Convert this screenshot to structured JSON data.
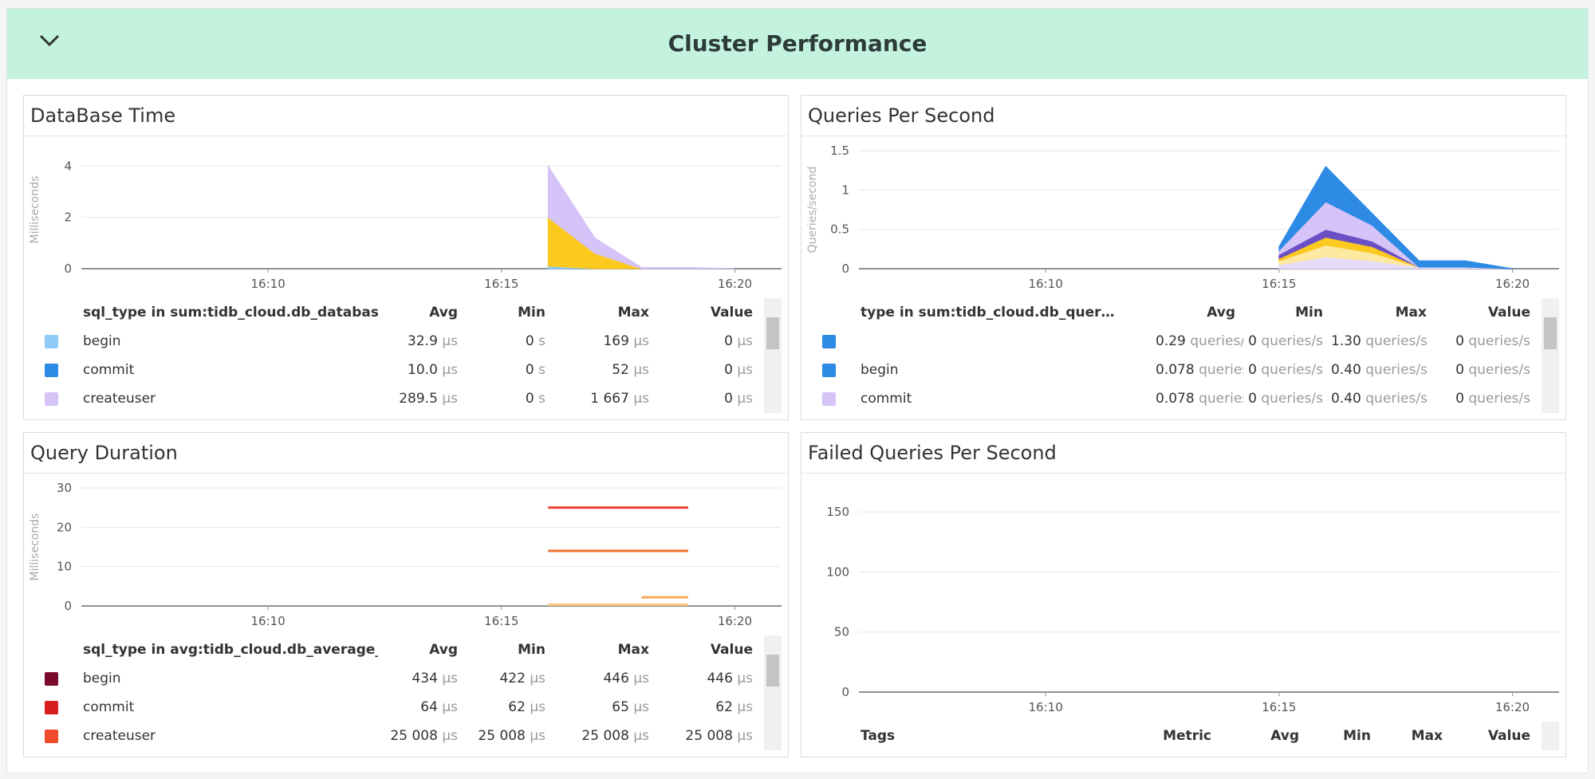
{
  "header": {
    "title": "Cluster Performance"
  },
  "panels": [
    {
      "title": "DataBase Time",
      "chart_data": {
        "type": "area",
        "y_label": "Milliseconds",
        "x": [
          "16:16",
          "16:17",
          "16:18",
          "16:19",
          "16:20"
        ],
        "xlim": [
          "16:06",
          "16:21"
        ],
        "xticks": [
          "16:10",
          "16:15",
          "16:20"
        ],
        "ylim": [
          0,
          4.6
        ],
        "yticks": [
          0,
          2,
          4
        ],
        "grid": true,
        "series": [
          {
            "color": "#8ecbf5",
            "values": [
              0.1,
              0,
              0,
              0,
              0
            ]
          },
          {
            "color": "#fcc91f",
            "values": [
              1.9,
              0.6,
              0,
              0,
              0
            ]
          },
          {
            "color": "#d6c3f7",
            "values": [
              2.0,
              0.6,
              0.05,
              0.05,
              0
            ]
          }
        ]
      },
      "legend": {
        "columns": [
          "sql_type in sum:tidb_cloud.db_database_time{host…",
          "Avg",
          "Min",
          "Max",
          "Value"
        ],
        "rows": [
          {
            "color": "#8ecbf5",
            "cells": [
              "begin",
              [
                "32.9",
                "µs"
              ],
              [
                "0",
                "s"
              ],
              [
                "169",
                "µs"
              ],
              [
                "0",
                "µs"
              ]
            ]
          },
          {
            "color": "#2d8be6",
            "cells": [
              "commit",
              [
                "10.0",
                "µs"
              ],
              [
                "0",
                "s"
              ],
              [
                "52",
                "µs"
              ],
              [
                "0",
                "µs"
              ]
            ]
          },
          {
            "color": "#d6c3f7",
            "cells": [
              "createuser",
              [
                "289.5",
                "µs"
              ],
              [
                "0",
                "s"
              ],
              [
                "1 667",
                "µs"
              ],
              [
                "0",
                "µs"
              ]
            ]
          }
        ]
      }
    },
    {
      "title": "Queries Per Second",
      "chart_data": {
        "type": "area",
        "y_label": "Queries/second",
        "x": [
          "16:15",
          "16:16",
          "16:17",
          "16:18",
          "16:19",
          "16:20"
        ],
        "xlim": [
          "16:06",
          "16:21"
        ],
        "xticks": [
          "16:10",
          "16:15",
          "16:20"
        ],
        "ylim": [
          0,
          1.5
        ],
        "yticks": [
          0,
          0.5,
          1,
          1.5
        ],
        "grid": true,
        "series": [
          {
            "color": "#e6dbf9",
            "values": [
              0.05,
              0.15,
              0.1,
              0.02,
              0.02,
              0
            ]
          },
          {
            "color": "#fde9a0",
            "values": [
              0.05,
              0.15,
              0.1,
              0,
              0,
              0
            ]
          },
          {
            "color": "#fcc91f",
            "values": [
              0.03,
              0.1,
              0.08,
              0,
              0,
              0
            ]
          },
          {
            "color": "#6b4fc4",
            "values": [
              0.05,
              0.1,
              0.07,
              0,
              0,
              0
            ]
          },
          {
            "color": "#d6c3f7",
            "values": [
              0.05,
              0.35,
              0.2,
              0,
              0,
              0
            ]
          },
          {
            "color": "#2d8be6",
            "values": [
              0.05,
              0.45,
              0.15,
              0.08,
              0.08,
              0
            ]
          }
        ]
      },
      "legend": {
        "columns": [
          "type in sum:tidb_cloud.db_quer…",
          "Avg",
          "Min",
          "Max",
          "Value"
        ],
        "rows": [
          {
            "color": "#2d8be6",
            "cells": [
              null,
              [
                "0.29",
                "queries/s"
              ],
              [
                "0",
                "queries/s"
              ],
              [
                "1.30",
                "queries/s"
              ],
              [
                "0",
                "queries/s"
              ]
            ]
          },
          {
            "color": "#2d8be6",
            "cells": [
              "begin",
              [
                "0.078",
                "queries/s"
              ],
              [
                "0",
                "queries/s"
              ],
              [
                "0.40",
                "queries/s"
              ],
              [
                "0",
                "queries/s"
              ]
            ]
          },
          {
            "color": "#d6c3f7",
            "cells": [
              "commit",
              [
                "0.078",
                "queries/s"
              ],
              [
                "0",
                "queries/s"
              ],
              [
                "0.40",
                "queries/s"
              ],
              [
                "0",
                "queries/s"
              ]
            ]
          }
        ]
      }
    },
    {
      "title": "Query Duration",
      "chart_data": {
        "type": "line",
        "y_label": "Milliseconds",
        "x": [
          "16:16",
          "16:17",
          "16:18",
          "16:19"
        ],
        "xlim": [
          "16:06",
          "16:21"
        ],
        "xticks": [
          "16:10",
          "16:15",
          "16:20"
        ],
        "ylim": [
          0,
          30
        ],
        "yticks": [
          0,
          10,
          20,
          30
        ],
        "grid": true,
        "series": [
          {
            "color": "#e8412c",
            "values": [
              25,
              25,
              25,
              25
            ]
          },
          {
            "color": "#f0702e",
            "values": [
              14,
              14,
              14,
              14
            ]
          },
          {
            "color": "#f6a95a",
            "values": [
              null,
              null,
              2.2,
              2.2
            ]
          },
          {
            "color": "#f7c27a",
            "values": [
              0.3,
              0.3,
              0.3,
              0.3
            ]
          }
        ]
      },
      "legend": {
        "columns": [
          "sql_type in avg:tidb_cloud.db_average_query_d…",
          "Avg",
          "Min",
          "Max",
          "Value"
        ],
        "rows": [
          {
            "color": "#7a0b2a",
            "cells": [
              "begin",
              [
                "434",
                "µs"
              ],
              [
                "422",
                "µs"
              ],
              [
                "446",
                "µs"
              ],
              [
                "446",
                "µs"
              ]
            ]
          },
          {
            "color": "#d81e1e",
            "cells": [
              "commit",
              [
                "64",
                "µs"
              ],
              [
                "62",
                "µs"
              ],
              [
                "65",
                "µs"
              ],
              [
                "62",
                "µs"
              ]
            ]
          },
          {
            "color": "#ee4a2c",
            "cells": [
              "createuser",
              [
                "25 008",
                "µs"
              ],
              [
                "25 008",
                "µs"
              ],
              [
                "25 008",
                "µs"
              ],
              [
                "25 008",
                "µs"
              ]
            ]
          }
        ]
      }
    },
    {
      "title": "Failed Queries Per Second",
      "chart_data": {
        "type": "line",
        "x": [],
        "xlim": [
          "16:06",
          "16:21"
        ],
        "xticks": [
          "16:10",
          "16:15",
          "16:20"
        ],
        "ylim": [
          0,
          170
        ],
        "yticks": [
          0,
          50,
          100,
          150
        ],
        "grid": true,
        "series": []
      },
      "legend": {
        "columns": [
          "Tags",
          "Metric",
          "Avg",
          "Min",
          "Max",
          "Value"
        ],
        "rows": []
      }
    }
  ]
}
